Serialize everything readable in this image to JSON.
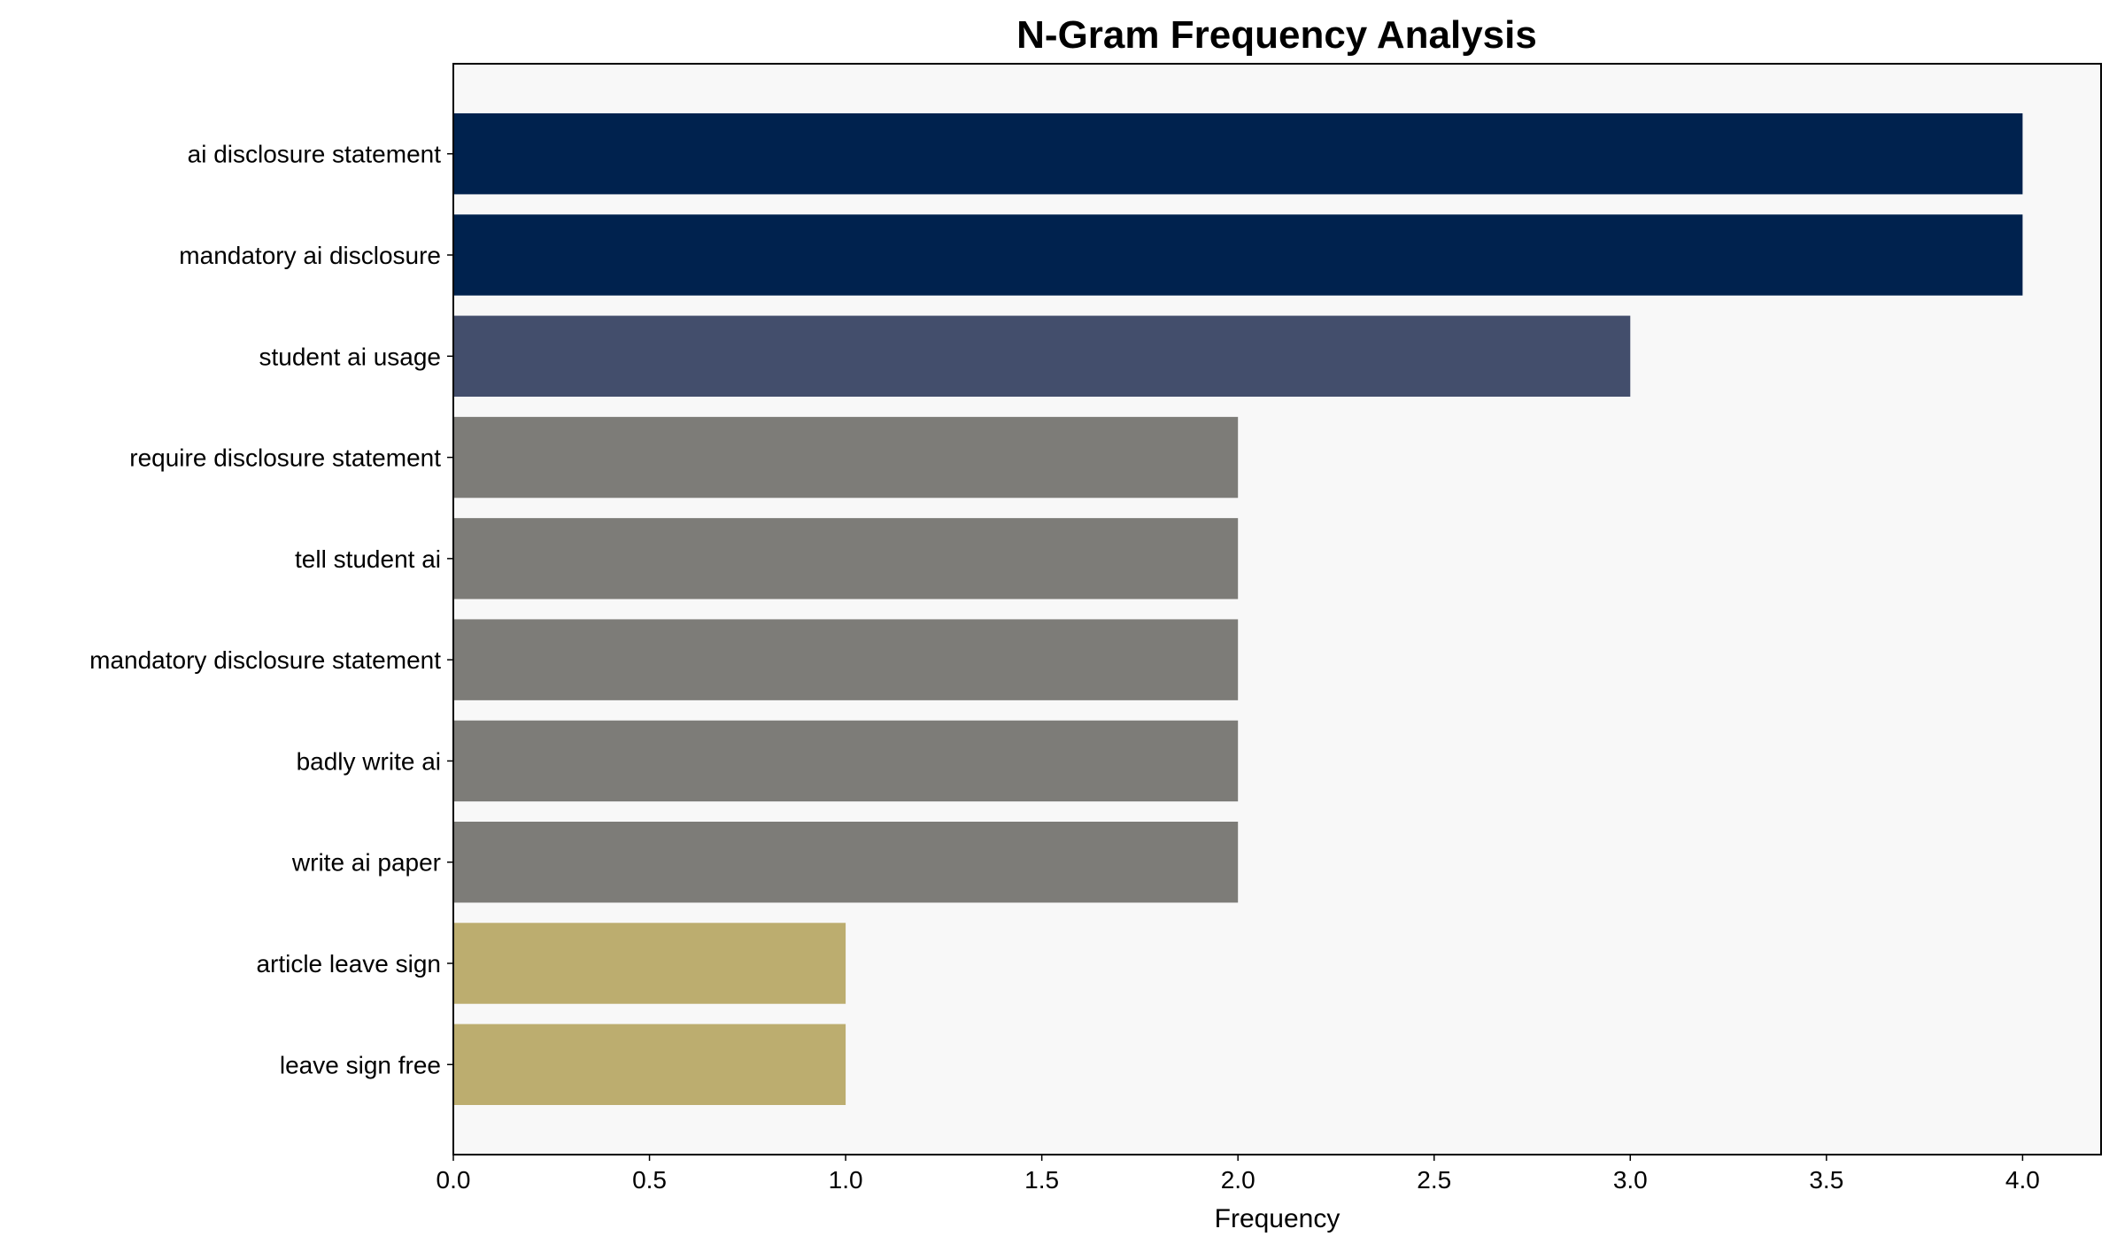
{
  "chart_data": {
    "type": "bar",
    "orientation": "horizontal",
    "title": "N-Gram Frequency Analysis",
    "xlabel": "Frequency",
    "ylabel": "",
    "xlim": [
      0,
      4.2
    ],
    "xticks": [
      "0.0",
      "0.5",
      "1.0",
      "1.5",
      "2.0",
      "2.5",
      "3.0",
      "3.5",
      "4.0"
    ],
    "grid": false,
    "background": "#f8f8f8",
    "categories": [
      "ai disclosure statement",
      "mandatory ai disclosure",
      "student ai usage",
      "require disclosure statement",
      "tell student ai",
      "mandatory disclosure statement",
      "badly write ai",
      "write ai paper",
      "article leave sign",
      "leave sign free"
    ],
    "values": [
      4,
      4,
      3,
      2,
      2,
      2,
      2,
      2,
      1,
      1
    ],
    "colors": [
      "#00224e",
      "#00224e",
      "#434e6c",
      "#7d7c78",
      "#7d7c78",
      "#7d7c78",
      "#7d7c78",
      "#7d7c78",
      "#bcad6f",
      "#bcad6f"
    ]
  }
}
